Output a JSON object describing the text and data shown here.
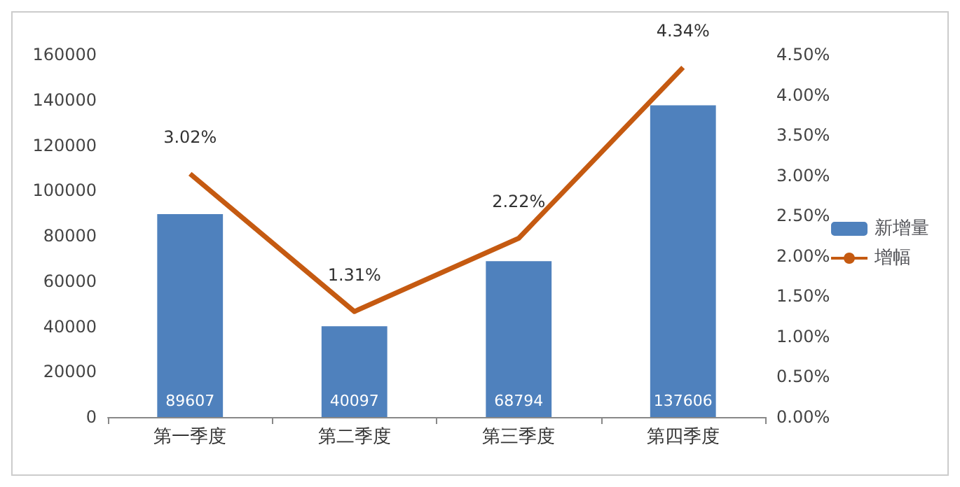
{
  "chart_data": {
    "type": "bar",
    "categories": [
      "第一季度",
      "第二季度",
      "第三季度",
      "第四季度"
    ],
    "series": [
      {
        "name": "新增量",
        "type": "bar",
        "color": "#4f81bd",
        "values": [
          89607,
          40097,
          68794,
          137606
        ],
        "value_labels": [
          "89607",
          "40097",
          "68794",
          "137606"
        ]
      },
      {
        "name": "增幅",
        "type": "line",
        "axis": "y2",
        "color": "#c55a11",
        "values": [
          3.02,
          1.31,
          2.22,
          4.34
        ],
        "value_labels": [
          "3.02%",
          "1.31%",
          "2.22%",
          "4.34%"
        ]
      }
    ],
    "ylim": [
      0,
      160000
    ],
    "yticks": [
      0,
      20000,
      40000,
      60000,
      80000,
      100000,
      120000,
      140000,
      160000
    ],
    "y2lim": [
      0,
      4.5
    ],
    "y2ticks": [
      {
        "value": 0,
        "label": "0.00%"
      },
      {
        "value": 0.5,
        "label": "0.50%"
      },
      {
        "value": 1,
        "label": "1.00%"
      },
      {
        "value": 1.5,
        "label": "1.50%"
      },
      {
        "value": 2,
        "label": "2.00%"
      },
      {
        "value": 2.5,
        "label": "2.50%"
      },
      {
        "value": 3,
        "label": "3.00%"
      },
      {
        "value": 3.5,
        "label": "3.50%"
      },
      {
        "value": 4,
        "label": "4.00%"
      },
      {
        "value": 4.5,
        "label": "4.50%"
      }
    ],
    "grid": false,
    "legend": "right",
    "marker": "none",
    "line_style": "solid"
  }
}
